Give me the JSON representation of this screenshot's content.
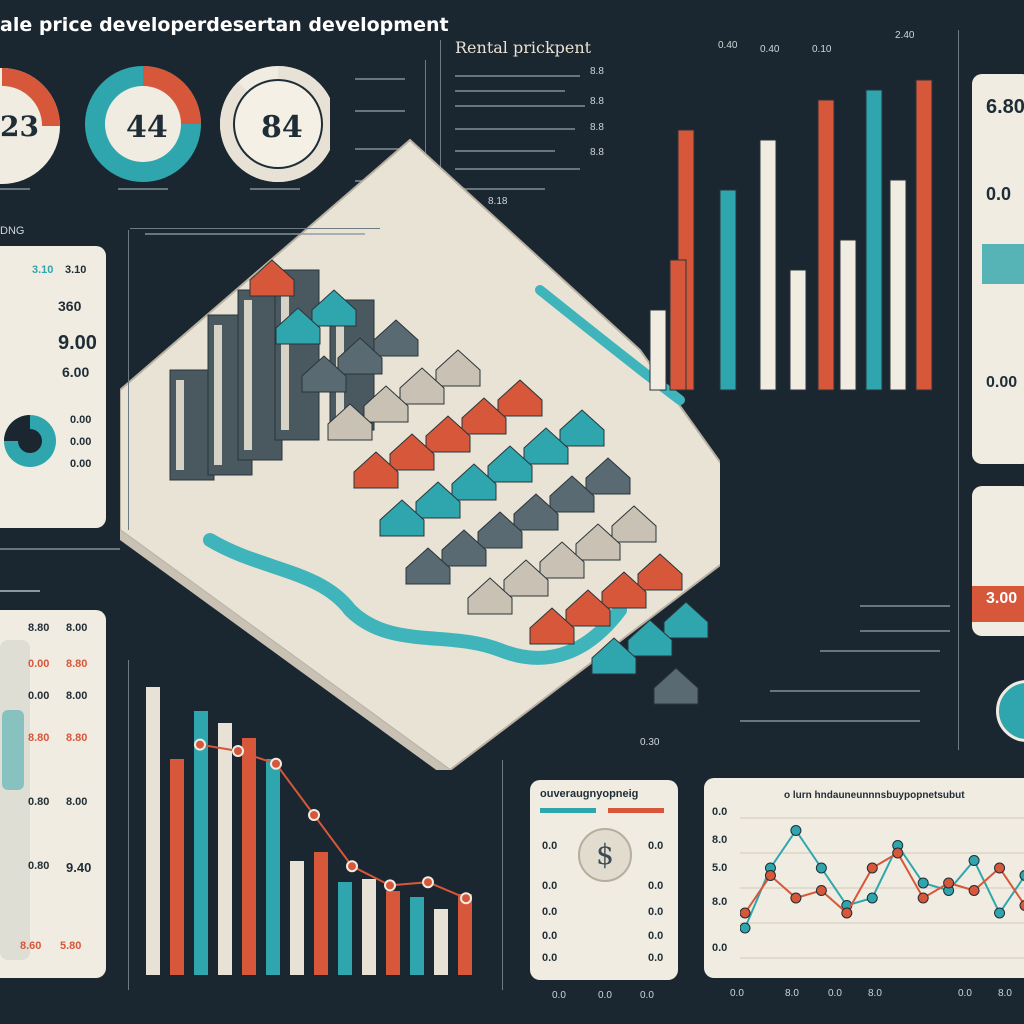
{
  "header": {
    "main_title": "ale price developerdesertan development",
    "rental_title": "Rental prickpent"
  },
  "donuts": [
    {
      "value": "23",
      "label": "",
      "fill": 0.72
    },
    {
      "value": "44",
      "label": "",
      "fill": 0.6
    },
    {
      "value": "84",
      "label": "",
      "fill": 0.84
    }
  ],
  "tick_labels": {
    "rental_axis": [
      "8.8",
      "8.8",
      "8.8",
      "8.8"
    ],
    "top_bars": [
      "0.40",
      "0.40",
      "0.10",
      "2.40"
    ],
    "map_tags": [
      "8.18",
      "0.30"
    ]
  },
  "left_panel": {
    "header": "DNG",
    "values": [
      "3.10",
      "3.10",
      "360",
      "9.00",
      "6.00",
      "0.00",
      "0.00",
      "0.00"
    ]
  },
  "left_bottom_panel": {
    "rows": [
      [
        "8.80",
        "8.00"
      ],
      [
        "0.00",
        "8.80"
      ],
      [
        "0.00",
        "8.00"
      ],
      [
        "8.80",
        "8.80"
      ],
      [
        "0.80",
        "8.00"
      ],
      [
        "0.80",
        "9.40"
      ],
      [
        "8.60",
        "5.80"
      ]
    ]
  },
  "bar_chart_bottom": {
    "series_colors": [
      "#d6573a",
      "#e8e2d6",
      "#2fa6ad"
    ],
    "values": [
      96,
      72,
      88,
      84,
      79,
      72,
      38,
      41,
      31,
      32,
      28,
      26,
      22,
      27
    ]
  },
  "line_overlay": {
    "points": [
      72,
      70,
      66,
      50,
      34,
      28,
      29,
      24
    ]
  },
  "center_panel": {
    "title": "ouveraugnyopneig",
    "symbol": "$",
    "rows": [
      [
        "0.0",
        "0.0"
      ],
      [
        "0.0",
        "0.0"
      ],
      [
        "0.0",
        "0.0"
      ],
      [
        "0.0",
        "0.0"
      ],
      [
        "0.0",
        "0.0"
      ]
    ],
    "footer": [
      "0.0",
      "0.0",
      "0.0"
    ]
  },
  "right_line_chart": {
    "title": "o lurn hndauneunnnsbuypopnetsubut",
    "y_ticks": [
      "0.0",
      "8.0",
      "5.0",
      "8.0",
      "0.0"
    ],
    "x_ticks": [
      "0.0",
      "8.0",
      "0.0",
      "8.0",
      "0.0",
      "8.0"
    ],
    "series": [
      {
        "color": "#2fa6ad",
        "values": [
          2,
          6,
          8.5,
          6,
          3.5,
          4,
          7.5,
          5,
          4.5,
          6.5,
          3,
          5.5
        ]
      },
      {
        "color": "#d6573a",
        "values": [
          3,
          5.5,
          4,
          4.5,
          3,
          6,
          7,
          4,
          5,
          4.5,
          6,
          3.5
        ]
      }
    ]
  },
  "right_panels": {
    "top_value": "6.80",
    "mid_value": "0.0",
    "low_value": "0.00",
    "bottom_value": "3.00"
  },
  "colors": {
    "background": "#1a2630",
    "panel": "#f1ece1",
    "teal": "#2fa6ad",
    "orange": "#d6573a",
    "cream": "#e8e2d6"
  }
}
